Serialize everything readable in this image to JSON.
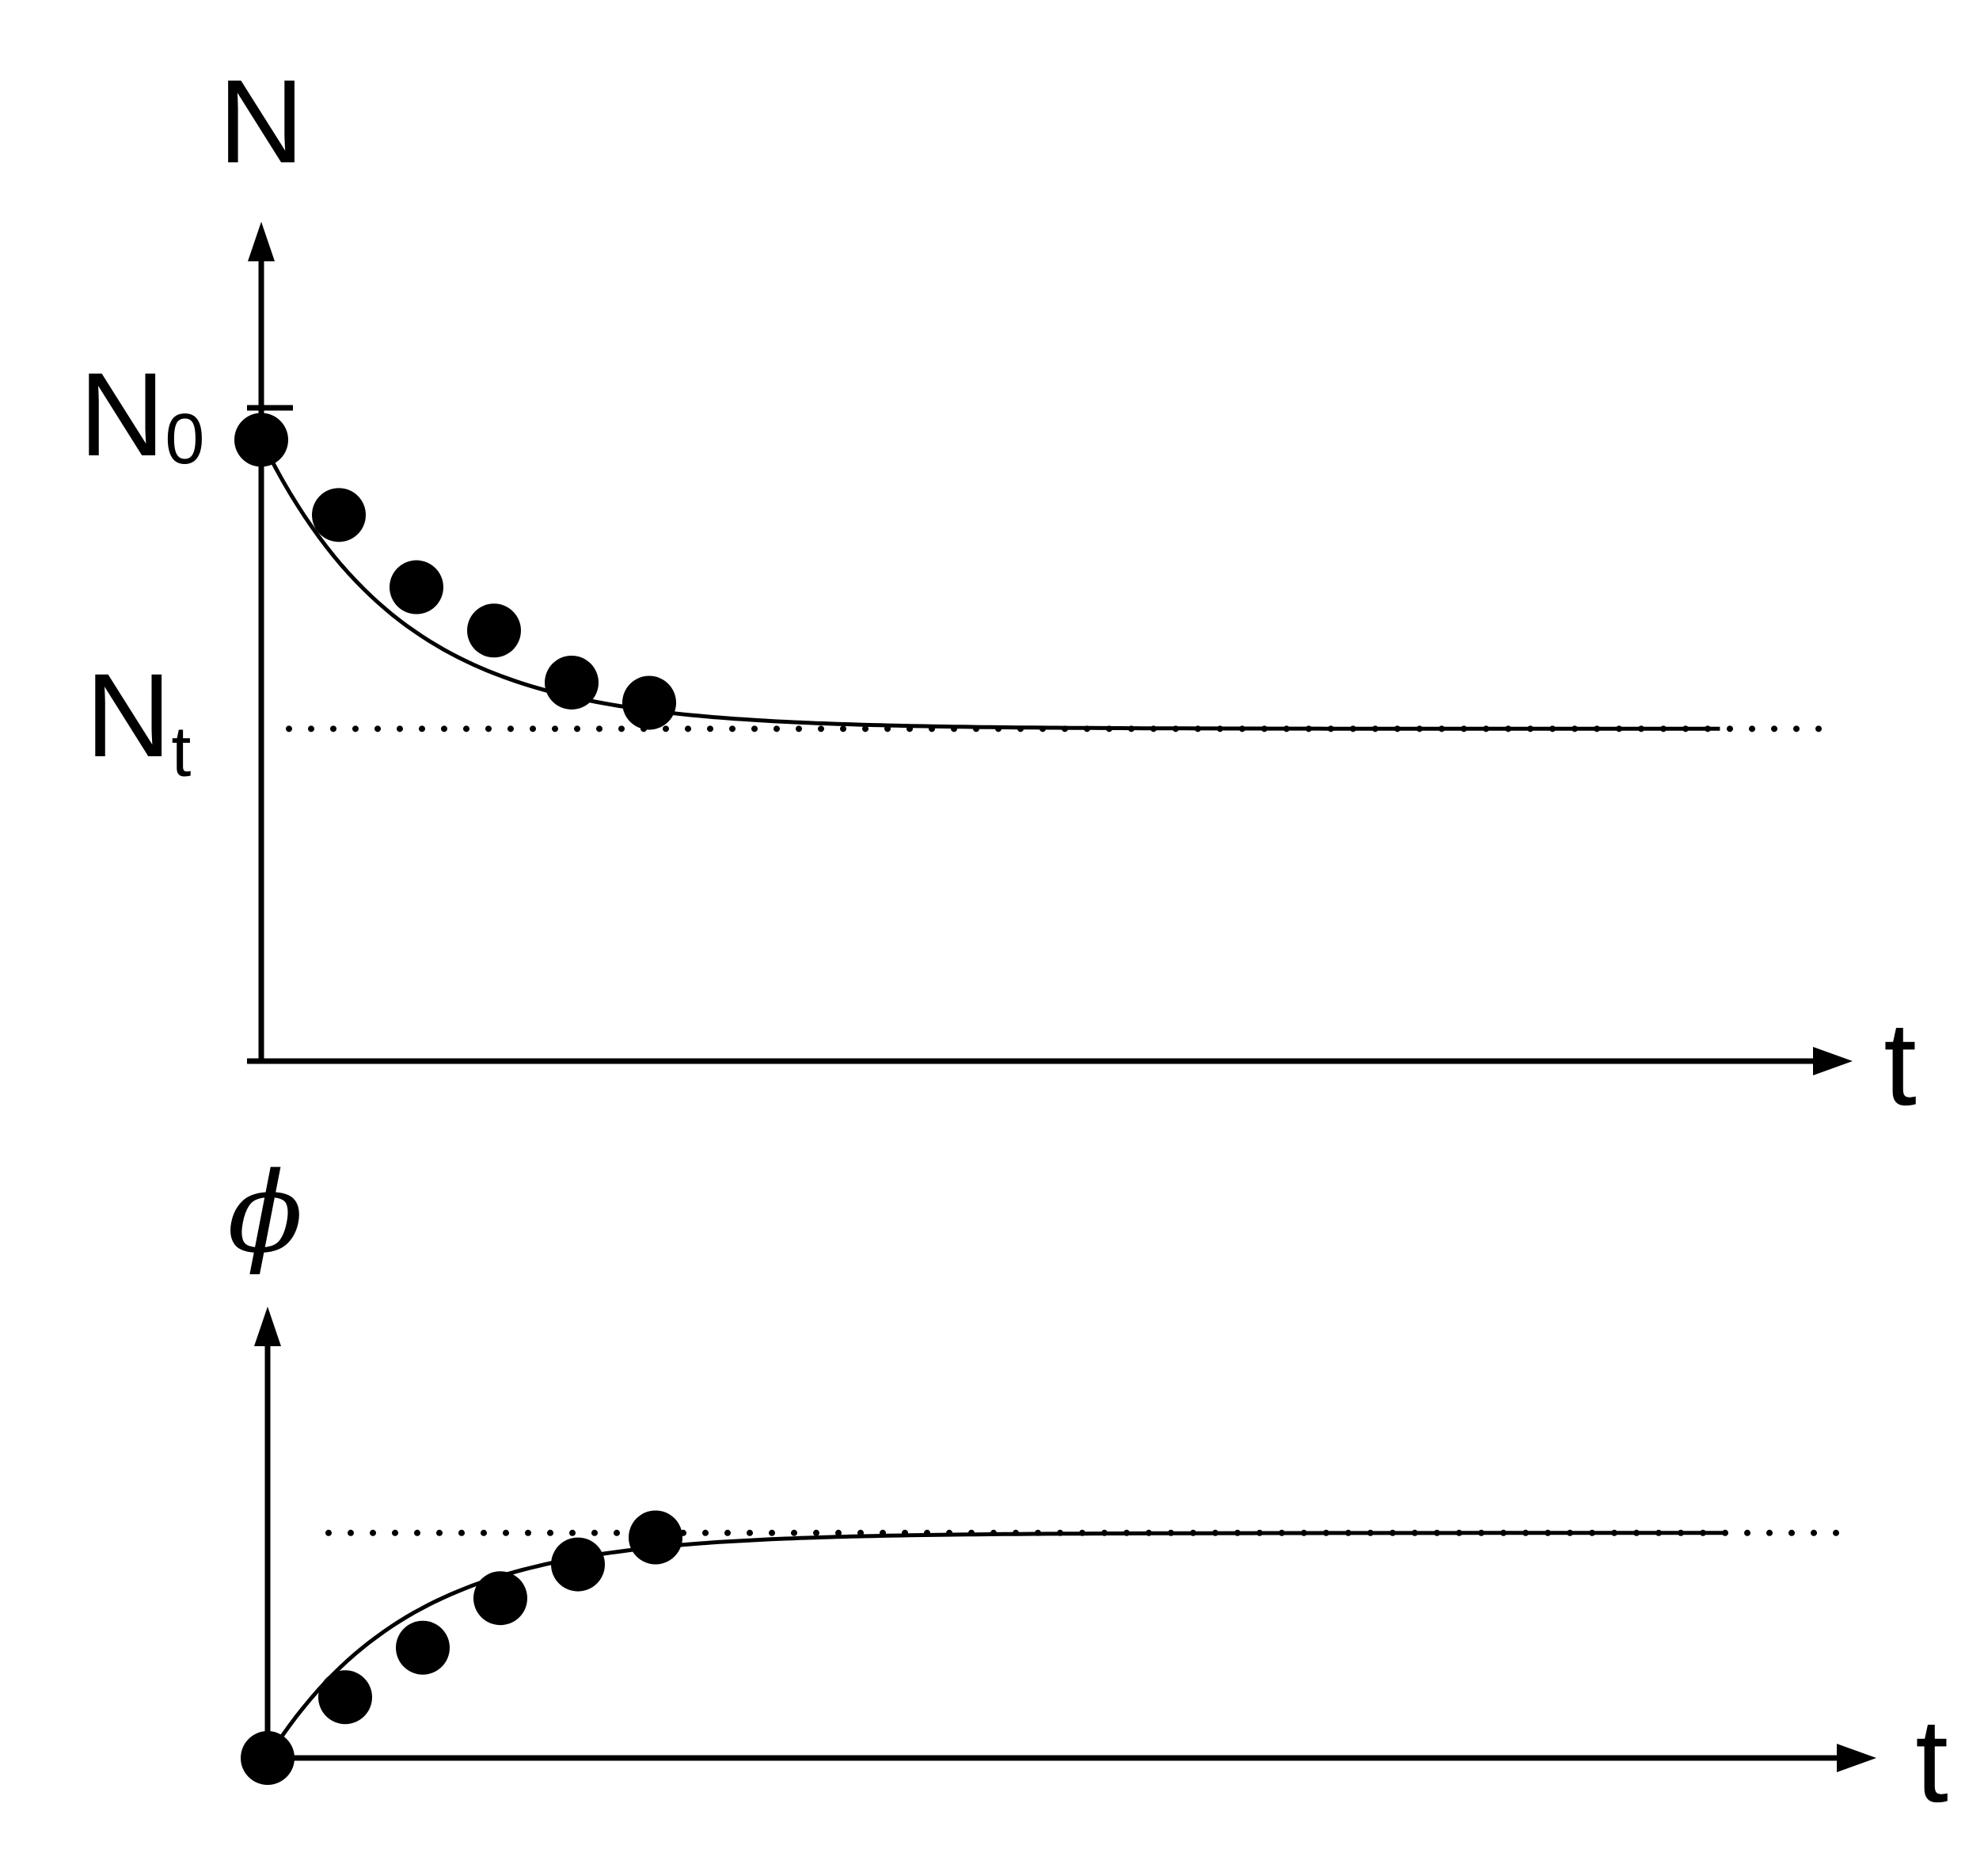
{
  "chart_data": [
    {
      "type": "line",
      "ylabel": "N",
      "xlabel": "t",
      "ytick_labels": [
        {
          "main": "N",
          "sub": "0",
          "value": 1.0
        },
        {
          "main": "N",
          "sub": "t",
          "value": 0.0
        }
      ],
      "asymptote": {
        "value": 0.0,
        "style": "dotted"
      },
      "ylim": [
        -1.15,
        1.7
      ],
      "xlim": [
        0,
        10
      ],
      "points": {
        "x": [
          0,
          0.5,
          1.0,
          1.5,
          2.0,
          2.5
        ],
        "y": [
          1.0,
          0.74,
          0.49,
          0.34,
          0.16,
          0.09
        ]
      },
      "curve": {
        "type": "exponential-decay",
        "start": 1.0,
        "end": 0.0,
        "rate": 1.1,
        "x_end": 9.4
      }
    },
    {
      "type": "line",
      "ylabel": "ϕ",
      "xlabel": "t",
      "asymptote": {
        "value": 1.0,
        "style": "dotted"
      },
      "ylim": [
        0,
        1.9
      ],
      "xlim": [
        0,
        10
      ],
      "points": {
        "x": [
          0,
          0.5,
          1.0,
          1.5,
          2.0,
          2.5
        ],
        "y": [
          0.0,
          0.27,
          0.49,
          0.71,
          0.86,
          0.98
        ]
      },
      "curve": {
        "type": "exponential-rise",
        "start": 0.0,
        "end": 1.0,
        "rate": 1.1,
        "x_end": 9.4
      }
    }
  ]
}
